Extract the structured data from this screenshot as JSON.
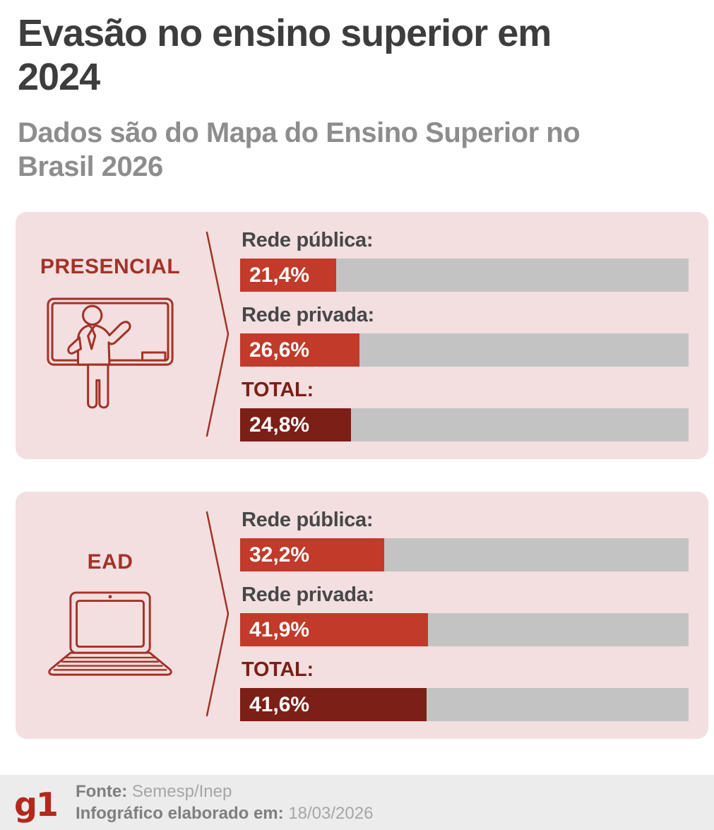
{
  "header": {
    "title": "Evasão no ensino superior em 2024",
    "subtitle": "Dados são do Mapa do Ensino Superior no Brasil 2026"
  },
  "panels": [
    {
      "label": "PRESENCIAL",
      "icon": "teacher-blackboard-icon",
      "bars": [
        {
          "label": "Rede pública:",
          "value": "21,4%",
          "pct": 21.4,
          "color": "#c13a2a"
        },
        {
          "label": "Rede privada:",
          "value": "26,6%",
          "pct": 26.6,
          "color": "#c13a2a"
        },
        {
          "label": "TOTAL:",
          "value": "24,8%",
          "pct": 24.8,
          "color": "#7c1f17",
          "label_color": "#7c1f17"
        }
      ]
    },
    {
      "label": "EAD",
      "icon": "laptop-icon",
      "bars": [
        {
          "label": "Rede pública:",
          "value": "32,2%",
          "pct": 32.2,
          "color": "#c13a2a"
        },
        {
          "label": "Rede privada:",
          "value": "41,9%",
          "pct": 41.9,
          "color": "#c13a2a"
        },
        {
          "label": "TOTAL:",
          "value": "41,6%",
          "pct": 41.6,
          "color": "#7c1f17",
          "label_color": "#7c1f17"
        }
      ]
    }
  ],
  "footer": {
    "logo_text": "g1",
    "source_label": "Fonte:",
    "source_value": "Semesp/Inep",
    "date_label": "Infográfico elaborado em:",
    "date_value": "18/03/2026"
  },
  "colors": {
    "bar_red": "#c13a2a",
    "bar_maroon": "#7c1f17",
    "bar_track_gray": "#c3c3c3",
    "panel_background": "#f3dfe0",
    "accent_red": "#a33228",
    "title_gray": "#3d3d3d",
    "subtitle_gray": "#8d8d8d",
    "bar_label_gray": "#474747",
    "footer_background": "#ececec",
    "g1_red": "#b5271c"
  },
  "chart_data": {
    "type": "bar",
    "title": "Evasão no ensino superior em 2024",
    "subtitle": "Dados são do Mapa do Ensino Superior no Brasil 2026",
    "unit": "%",
    "xlim": [
      0,
      100
    ],
    "groups": [
      {
        "name": "PRESENCIAL",
        "categories": [
          "Rede pública",
          "Rede privada",
          "TOTAL"
        ],
        "values": [
          21.4,
          26.6,
          24.8
        ]
      },
      {
        "name": "EAD",
        "categories": [
          "Rede pública",
          "Rede privada",
          "TOTAL"
        ],
        "values": [
          32.2,
          41.9,
          41.6
        ]
      }
    ],
    "source": "Semesp/Inep",
    "elaborated_on": "18/03/2026"
  }
}
